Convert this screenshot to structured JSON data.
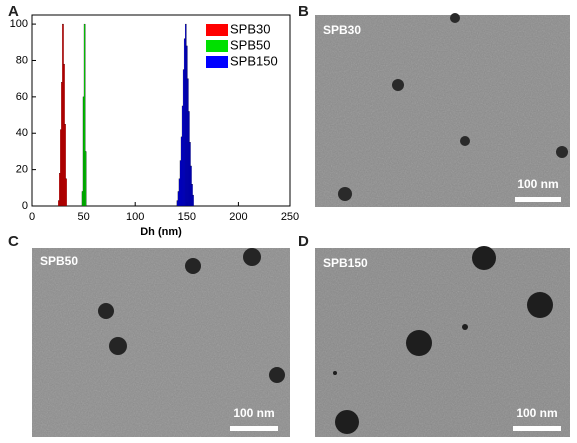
{
  "panel_labels": [
    "A",
    "B",
    "C",
    "D"
  ],
  "chart_data": {
    "type": "bar",
    "xlabel": "Dh (nm)",
    "xlim": [
      0,
      250
    ],
    "xticks": [
      0,
      50,
      100,
      150,
      200,
      250
    ],
    "ylim": [
      0,
      105
    ],
    "yticks": [
      0,
      20,
      40,
      60,
      80,
      100
    ],
    "legend": "upper right",
    "series": [
      {
        "name": "SPB30",
        "color": "#ff0000",
        "x": [
          26,
          27,
          28,
          29,
          30,
          31,
          32,
          33
        ],
        "values": [
          3,
          18,
          42,
          68,
          100,
          78,
          45,
          15
        ]
      },
      {
        "name": "SPB50",
        "color": "#00e000",
        "x": [
          49,
          50,
          51,
          52
        ],
        "values": [
          8,
          60,
          100,
          30
        ]
      },
      {
        "name": "SPB150",
        "color": "#0000ff",
        "x": [
          141,
          142,
          143,
          144,
          145,
          146,
          147,
          148,
          149,
          150,
          151,
          152,
          153,
          154,
          155,
          156
        ],
        "values": [
          3,
          8,
          15,
          25,
          38,
          55,
          75,
          92,
          100,
          88,
          70,
          52,
          35,
          22,
          12,
          6
        ]
      }
    ]
  },
  "images": [
    {
      "label": "SPB30",
      "scale_bar": "100 nm"
    },
    {
      "label": "SPB50",
      "scale_bar": "100 nm"
    },
    {
      "label": "SPB150",
      "scale_bar": "100 nm"
    }
  ]
}
